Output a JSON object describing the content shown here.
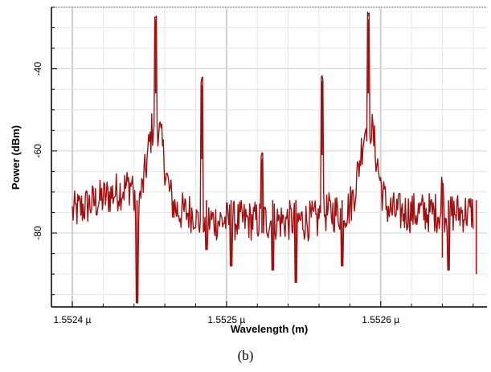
{
  "chart_data": {
    "type": "line",
    "title": "",
    "xlabel": "Wavelength (m)",
    "ylabel": "Power (dBm)",
    "x_unit_scale": 1e-06,
    "xlim": [
      1.5524,
      1.55267
    ],
    "ylim": [
      -98,
      -25
    ],
    "x_major_ticks": [
      {
        "value": 1.5524,
        "label": "1.5524 µ"
      },
      {
        "value": 1.5525,
        "label": "1.5525 µ"
      },
      {
        "value": 1.5526,
        "label": "1.5526 µ"
      }
    ],
    "y_major_ticks": [
      {
        "value": -40,
        "label": "-40"
      },
      {
        "value": -60,
        "label": "-60"
      },
      {
        "value": -80,
        "label": "-80"
      }
    ],
    "grid": true,
    "legend": "none",
    "series_color": "#a01010",
    "peaks": [
      {
        "x": 1.552454,
        "y": -28,
        "label": ""
      },
      {
        "x": 1.552484,
        "y": -44,
        "label": ""
      },
      {
        "x": 1.552523,
        "y": -62,
        "label": ""
      },
      {
        "x": 1.552562,
        "y": -43,
        "label": ""
      },
      {
        "x": 1.552592,
        "y": -28,
        "label": ""
      },
      {
        "x": 1.55264,
        "y": -68,
        "label": ""
      }
    ],
    "dips": [
      {
        "x": 1.552442,
        "y": -97
      },
      {
        "x": 1.552487,
        "y": -84
      },
      {
        "x": 1.552503,
        "y": -88
      },
      {
        "x": 1.55253,
        "y": -89
      },
      {
        "x": 1.552545,
        "y": -92
      },
      {
        "x": 1.552575,
        "y": -88
      },
      {
        "x": 1.552644,
        "y": -89
      },
      {
        "x": 1.552662,
        "y": -90
      }
    ]
  },
  "caption": "(b)"
}
